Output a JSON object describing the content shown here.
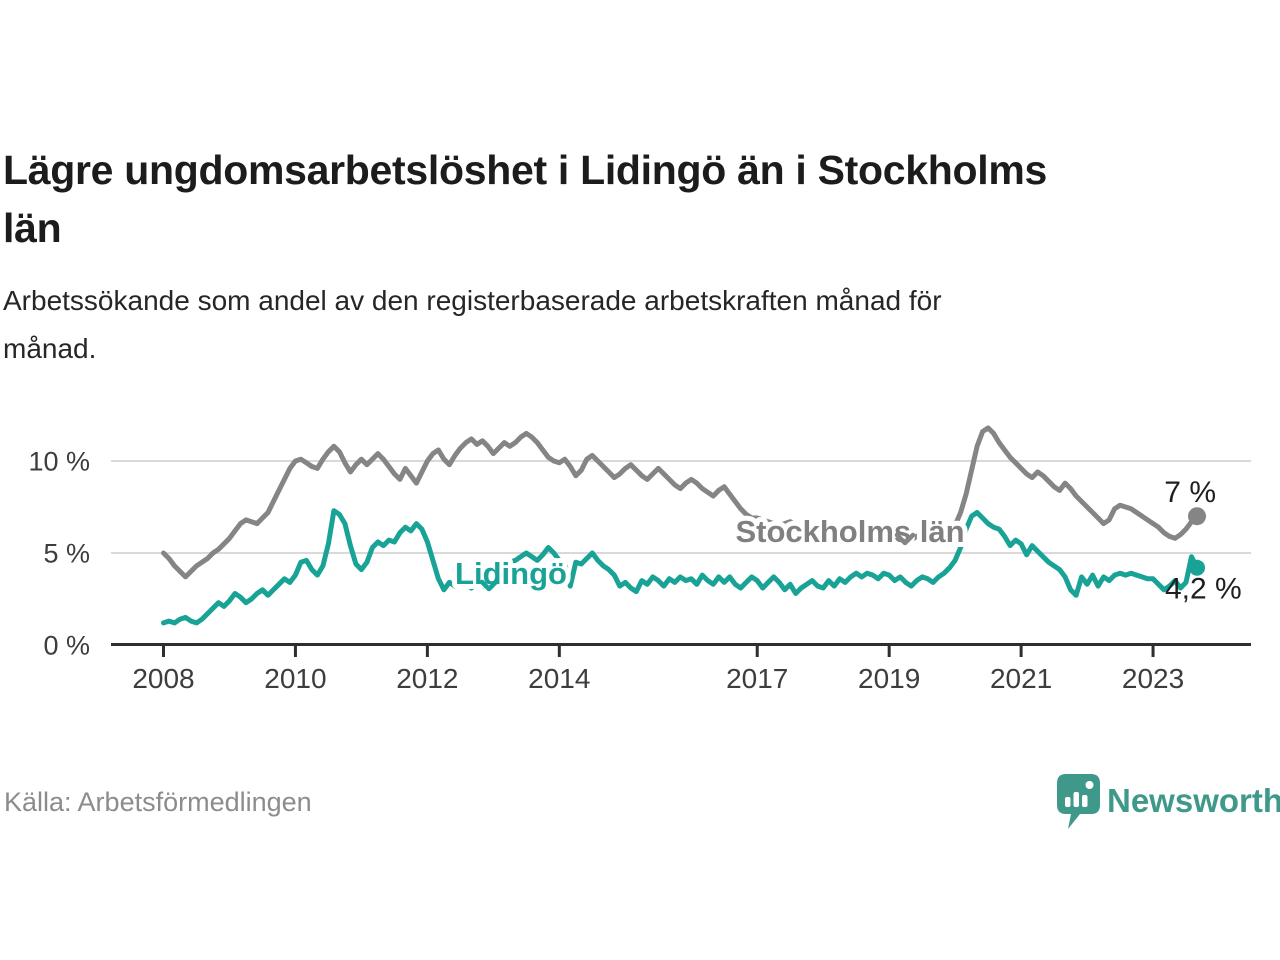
{
  "page": {
    "background": "#ffffff"
  },
  "header": {
    "title": "Lägre ungdomsarbetslöshet i Lidingö än i Stockholms\nlän",
    "subtitle": "Arbetssökande som andel av den registerbaserade arbetskraften månad för\nmånad."
  },
  "source": {
    "label": "Källa: Arbetsförmedlingen"
  },
  "branding": {
    "name": "Newsworthy",
    "logo_icon": "bar-chart-speech-bubble-icon",
    "color": "#3f998a"
  },
  "chart_data": {
    "type": "line",
    "unit": "%",
    "frequency": "monthly",
    "start": "2008-01",
    "end": "2023-09",
    "grid": "horizontal-only",
    "ylim": [
      0,
      12.5
    ],
    "x_ticks": [
      {
        "label": "2008",
        "year": 2008
      },
      {
        "label": "2010",
        "year": 2010
      },
      {
        "label": "2012",
        "year": 2012
      },
      {
        "label": "2014",
        "year": 2014
      },
      {
        "label": "2017",
        "year": 2017
      },
      {
        "label": "2019",
        "year": 2019
      },
      {
        "label": "2021",
        "year": 2021
      },
      {
        "label": "2023",
        "year": 2023
      }
    ],
    "y_ticks": [
      {
        "label": "0 %",
        "value": 0
      },
      {
        "label": "5 %",
        "value": 5
      },
      {
        "label": "10 %",
        "value": 10
      }
    ],
    "series": [
      {
        "name": "Lidingö",
        "color": "#18a396",
        "end_value": 4.2,
        "end_label": "4,2 %",
        "values": [
          1.2,
          1.3,
          1.2,
          1.4,
          1.5,
          1.3,
          1.2,
          1.4,
          1.7,
          2.0,
          2.3,
          2.1,
          2.4,
          2.8,
          2.6,
          2.3,
          2.5,
          2.8,
          3.0,
          2.7,
          3.0,
          3.3,
          3.6,
          3.4,
          3.8,
          4.5,
          4.6,
          4.1,
          3.8,
          4.3,
          5.5,
          7.3,
          7.1,
          6.6,
          5.4,
          4.4,
          4.1,
          4.5,
          5.3,
          5.6,
          5.4,
          5.7,
          5.6,
          6.1,
          6.4,
          6.2,
          6.6,
          6.3,
          5.6,
          4.6,
          3.6,
          3.0,
          3.4,
          3.2,
          3.5,
          3.3,
          3.1,
          3.4,
          3.2,
          3.5,
          3.7,
          3.9,
          4.2,
          4.5,
          4.6,
          4.8,
          5.0,
          4.8,
          4.6,
          4.9,
          5.3,
          5.0,
          4.6,
          4.4,
          3.2,
          4.5,
          4.4,
          4.7,
          5.0,
          4.6,
          4.3,
          4.1,
          3.8,
          3.2,
          3.4,
          3.1,
          2.9,
          3.5,
          3.3,
          3.7,
          3.5,
          3.2,
          3.6,
          3.4,
          3.7,
          3.5,
          3.6,
          3.3,
          3.8,
          3.5,
          3.3,
          3.7,
          3.4,
          3.7,
          3.3,
          3.1,
          3.4,
          3.7,
          3.5,
          3.1,
          3.4,
          3.7,
          3.4,
          3.0,
          3.3,
          2.8,
          3.1,
          3.3,
          3.5,
          3.2,
          3.1,
          3.5,
          3.2,
          3.6,
          3.4,
          3.7,
          3.9,
          3.7,
          3.9,
          3.8,
          3.6,
          3.9,
          3.8,
          3.5,
          3.7,
          3.4,
          3.2,
          3.5,
          3.7,
          3.6,
          3.4,
          3.7,
          3.9,
          4.2,
          4.6,
          5.3,
          6.3,
          7.0,
          7.2,
          6.9,
          6.6,
          6.4,
          6.3,
          5.9,
          5.4,
          5.7,
          5.5,
          4.9,
          5.4,
          5.1,
          4.8,
          4.5,
          4.3,
          4.1,
          3.7,
          3.0,
          2.7,
          3.7,
          3.3,
          3.8,
          3.2,
          3.7,
          3.5,
          3.8,
          3.9,
          3.8,
          3.9,
          3.8,
          3.7,
          3.6,
          3.6,
          3.3,
          3.0,
          3.2,
          3.5,
          3.1,
          3.4,
          4.8,
          4.2
        ]
      },
      {
        "name": "Stockholms län",
        "color": "#858585",
        "end_value": 7.0,
        "end_label": "7 %",
        "values": [
          5.0,
          4.7,
          4.3,
          4.0,
          3.7,
          4.0,
          4.3,
          4.5,
          4.7,
          5.0,
          5.2,
          5.5,
          5.8,
          6.2,
          6.6,
          6.8,
          6.7,
          6.6,
          6.9,
          7.2,
          7.8,
          8.4,
          9.0,
          9.6,
          10.0,
          10.1,
          9.9,
          9.7,
          9.6,
          10.1,
          10.5,
          10.8,
          10.5,
          9.9,
          9.4,
          9.8,
          10.1,
          9.8,
          10.1,
          10.4,
          10.1,
          9.7,
          9.3,
          9.0,
          9.6,
          9.2,
          8.8,
          9.4,
          10.0,
          10.4,
          10.6,
          10.1,
          9.8,
          10.3,
          10.7,
          11.0,
          11.2,
          10.9,
          11.1,
          10.8,
          10.4,
          10.7,
          11.0,
          10.8,
          11.0,
          11.3,
          11.5,
          11.3,
          11.0,
          10.6,
          10.2,
          10.0,
          9.9,
          10.1,
          9.7,
          9.2,
          9.5,
          10.1,
          10.3,
          10.0,
          9.7,
          9.4,
          9.1,
          9.3,
          9.6,
          9.8,
          9.5,
          9.2,
          9.0,
          9.3,
          9.6,
          9.3,
          9.0,
          8.7,
          8.5,
          8.8,
          9.0,
          8.8,
          8.5,
          8.3,
          8.1,
          8.4,
          8.6,
          8.2,
          7.8,
          7.4,
          7.1,
          6.9,
          6.9,
          6.8,
          6.7,
          6.6,
          6.5,
          6.6,
          6.7,
          6.5,
          6.3,
          6.2,
          6.1,
          6.2,
          6.3,
          6.1,
          6.0,
          5.9,
          5.8,
          5.9,
          6.1,
          6.0,
          5.9,
          5.8,
          5.7,
          5.9,
          6.1,
          6.0,
          5.9,
          5.8,
          5.7,
          5.9,
          6.1,
          6.0,
          5.9,
          6.0,
          6.1,
          6.3,
          6.5,
          7.2,
          8.2,
          9.5,
          10.8,
          11.6,
          11.8,
          11.5,
          11.0,
          10.6,
          10.2,
          9.9,
          9.6,
          9.3,
          9.1,
          9.4,
          9.2,
          8.9,
          8.6,
          8.4,
          8.8,
          8.5,
          8.1,
          7.8,
          7.5,
          7.2,
          6.9,
          6.6,
          6.8,
          7.4,
          7.6,
          7.5,
          7.4,
          7.2,
          7.0,
          6.8,
          6.6,
          6.4,
          6.1,
          5.9,
          5.8,
          6.0,
          6.3,
          6.7,
          7.0
        ]
      }
    ]
  }
}
